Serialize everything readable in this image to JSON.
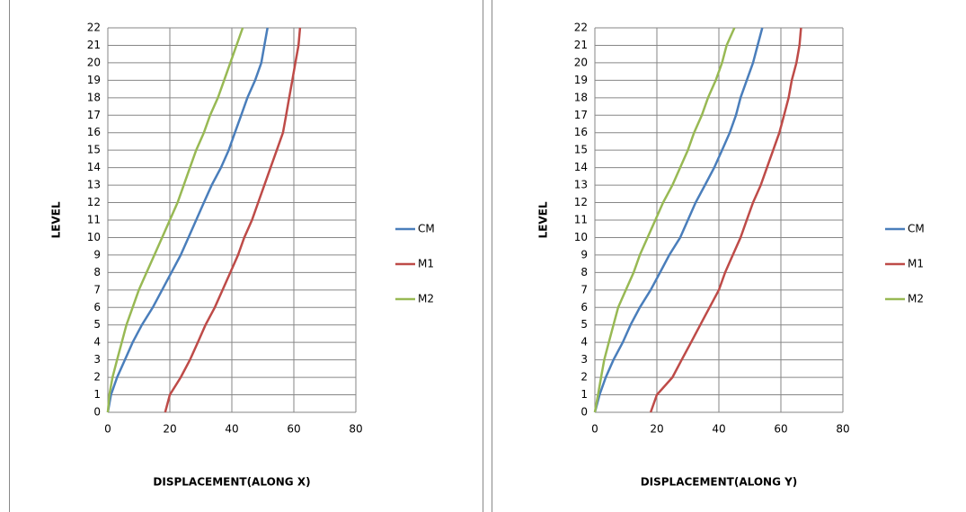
{
  "chart_data": [
    {
      "type": "line",
      "orientation": "horizontal",
      "x_label": "DISPLACEMENT(ALONG X)",
      "y_label": "LEVEL",
      "categories": [
        0,
        1,
        2,
        3,
        4,
        5,
        6,
        7,
        8,
        9,
        10,
        11,
        12,
        13,
        14,
        15,
        16,
        17,
        18,
        19,
        20,
        21,
        22
      ],
      "xlim": [
        0,
        80
      ],
      "xticks": [
        0,
        20,
        40,
        60,
        80
      ],
      "grid": true,
      "legend": "right",
      "series": [
        {
          "name": "CM",
          "color": "#4a7ebb",
          "values": [
            0,
            1,
            3,
            5.5,
            8,
            11,
            14.5,
            17.5,
            20.5,
            23.5,
            26,
            28.5,
            31,
            33.5,
            36.5,
            39,
            41,
            43,
            45,
            47.5,
            49.5,
            50.5,
            51.5
          ]
        },
        {
          "name": "M1",
          "color": "#be4b48",
          "values": [
            18.5,
            20,
            23.5,
            26.5,
            29,
            31.5,
            34.5,
            37,
            39.5,
            42,
            44,
            46.5,
            48.5,
            50.5,
            52.5,
            54.5,
            56.5,
            57.5,
            58.5,
            59.5,
            60.5,
            61.5,
            62
          ]
        },
        {
          "name": "M2",
          "color": "#98b954",
          "values": [
            0,
            0.5,
            1.5,
            3,
            4.5,
            6,
            8,
            10,
            12.5,
            15,
            17.5,
            20,
            22.5,
            24.5,
            26.5,
            28.5,
            31,
            33,
            35.5,
            37.5,
            39.5,
            41.5,
            43.5
          ]
        }
      ]
    },
    {
      "type": "line",
      "orientation": "horizontal",
      "x_label": "DISPLACEMENT(ALONG Y)",
      "y_label": "LEVEL",
      "categories": [
        0,
        1,
        2,
        3,
        4,
        5,
        6,
        7,
        8,
        9,
        10,
        11,
        12,
        13,
        14,
        15,
        16,
        17,
        18,
        19,
        20,
        21,
        22
      ],
      "xlim": [
        0,
        80
      ],
      "xticks": [
        0,
        20,
        40,
        60,
        80
      ],
      "grid": true,
      "legend": "right",
      "series": [
        {
          "name": "CM",
          "color": "#4a7ebb",
          "values": [
            0,
            1.5,
            3.5,
            6,
            9,
            11.5,
            14.5,
            18,
            21,
            24,
            27.5,
            30,
            32.5,
            35.5,
            38.5,
            41,
            43.5,
            45.5,
            47,
            49,
            51,
            52.5,
            54
          ]
        },
        {
          "name": "M1",
          "color": "#be4b48",
          "values": [
            18,
            20,
            25,
            28,
            31,
            34,
            37,
            40,
            42,
            44.5,
            47,
            49,
            51,
            53.5,
            55.5,
            57.5,
            59.5,
            61,
            62.5,
            63.5,
            65,
            66,
            66.5
          ]
        },
        {
          "name": "M2",
          "color": "#98b954",
          "values": [
            0,
            1,
            2,
            3,
            4.5,
            6,
            7.5,
            10,
            12.5,
            14.5,
            17,
            19.5,
            22,
            25,
            27.5,
            30,
            32,
            34.5,
            36.5,
            39,
            41,
            42.5,
            45
          ]
        }
      ]
    }
  ]
}
